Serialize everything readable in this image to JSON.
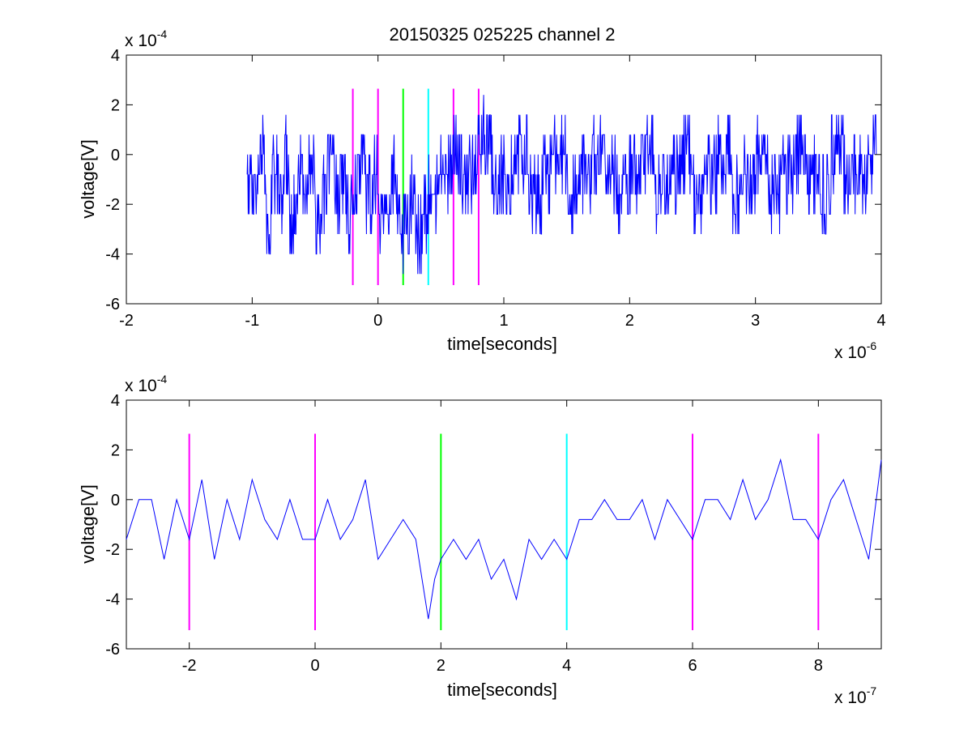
{
  "chart_data": [
    {
      "type": "line",
      "title": "20150325 025225 channel 2",
      "xlabel": "time[seconds]",
      "ylabel": "voltage[V]",
      "x_exponent_label": "x 10",
      "x_exponent": "-6",
      "y_exponent_label": "x 10",
      "y_exponent": "-4",
      "xlim": [
        -2,
        4
      ],
      "ylim": [
        -6,
        4
      ],
      "x_ticks": [
        "-2",
        "-1",
        "0",
        "1",
        "2",
        "3",
        "4"
      ],
      "y_ticks": [
        "4",
        "2",
        "0",
        "-2",
        "-4",
        "-6"
      ],
      "series": [
        {
          "color": "#0000ff",
          "x_range": [
            -1.04,
            3.96
          ],
          "levels": [
            -4.8,
            -4.0,
            -3.2,
            -2.4,
            -1.6,
            -0.8,
            0.0,
            0.8,
            1.6,
            2.4
          ],
          "x": [
            -1.04,
            -0.99,
            -0.95,
            -0.9,
            -0.85,
            -0.8,
            -0.75,
            -0.7,
            -0.65,
            -0.6,
            -0.55,
            -0.5,
            -0.45,
            -0.4,
            -0.35,
            -0.3,
            -0.25,
            -0.2,
            -0.15,
            -0.1,
            -0.05,
            0.0,
            0.05,
            0.1,
            0.15,
            0.18,
            0.2,
            0.25,
            0.3,
            0.35,
            0.4,
            0.45,
            0.5,
            0.55,
            0.6,
            0.65,
            0.7,
            0.75,
            0.8,
            0.9,
            1.0,
            1.1,
            1.2,
            1.3,
            1.4,
            1.5,
            1.6,
            1.7,
            1.8,
            1.9,
            2.0,
            2.1,
            2.2,
            2.3,
            2.4,
            2.5,
            2.6,
            2.7,
            2.8,
            2.9,
            3.0,
            3.1,
            3.2,
            3.3,
            3.4,
            3.5,
            3.6,
            3.7,
            3.8,
            3.9,
            3.96
          ],
          "y": [
            -0.8,
            -1.6,
            0.0,
            -2.4,
            -0.8,
            -1.6,
            0.0,
            -2.4,
            -0.8,
            -1.6,
            0.0,
            -2.4,
            -1.6,
            0.0,
            -1.6,
            -0.8,
            -2.4,
            -0.8,
            0.0,
            -1.6,
            -0.8,
            -2.4,
            -1.6,
            -0.8,
            -2.4,
            -4.0,
            -2.4,
            -1.6,
            -3.2,
            -2.4,
            -0.8,
            -1.6,
            -0.8,
            -0.8,
            0.0,
            -0.8,
            -0.8,
            0.0,
            0.8,
            -0.8,
            -0.8,
            0.0,
            -1.6,
            -0.8,
            0.0,
            -1.6,
            -0.8,
            0.0,
            -0.8,
            -1.6,
            -0.8,
            0.0,
            -1.6,
            -0.8,
            0.0,
            -1.6,
            -0.8,
            0.0,
            -1.6,
            -0.8,
            0.0,
            -1.6,
            -0.8,
            0.0,
            -0.8,
            -1.6,
            0.0,
            -0.8,
            -0.8,
            0.0,
            -1.6
          ]
        }
      ],
      "markers": [
        {
          "x": -0.2,
          "color": "#ff00ff"
        },
        {
          "x": 0.0,
          "color": "#ff00ff"
        },
        {
          "x": 0.2,
          "color": "#00ff00"
        },
        {
          "x": 0.4,
          "color": "#00ffff"
        },
        {
          "x": 0.6,
          "color": "#ff00ff"
        },
        {
          "x": 0.8,
          "color": "#ff00ff"
        }
      ],
      "marker_yrange": [
        -5.25,
        2.65
      ]
    },
    {
      "type": "line",
      "xlabel": "time[seconds]",
      "ylabel": "voltage[V]",
      "x_exponent_label": "x 10",
      "x_exponent": "-7",
      "y_exponent_label": "x 10",
      "y_exponent": "-4",
      "xlim": [
        -3,
        9
      ],
      "ylim": [
        -6,
        4
      ],
      "x_ticks": [
        "-2",
        "0",
        "2",
        "4",
        "6",
        "8"
      ],
      "y_ticks": [
        "4",
        "2",
        "0",
        "-2",
        "-4",
        "-6"
      ],
      "series": [
        {
          "color": "#0000ff",
          "x": [
            -3.0,
            -2.8,
            -2.6,
            -2.4,
            -2.2,
            -2.0,
            -1.8,
            -1.6,
            -1.4,
            -1.2,
            -1.0,
            -0.8,
            -0.6,
            -0.4,
            -0.2,
            0.0,
            0.2,
            0.4,
            0.6,
            0.8,
            1.0,
            1.2,
            1.4,
            1.6,
            1.8,
            1.9,
            2.0,
            2.2,
            2.4,
            2.6,
            2.8,
            3.0,
            3.2,
            3.4,
            3.6,
            3.8,
            4.0,
            4.2,
            4.4,
            4.6,
            4.8,
            5.0,
            5.2,
            5.4,
            5.6,
            5.8,
            6.0,
            6.2,
            6.4,
            6.6,
            6.8,
            7.0,
            7.2,
            7.4,
            7.6,
            7.8,
            8.0,
            8.2,
            8.4,
            8.6,
            8.8,
            9.0
          ],
          "y": [
            -1.6,
            0.0,
            0.0,
            -2.4,
            0.0,
            -1.6,
            0.8,
            -2.4,
            0.0,
            -1.6,
            0.8,
            -0.8,
            -1.6,
            0.0,
            -1.6,
            -1.6,
            0.0,
            -1.6,
            -0.8,
            0.8,
            -2.4,
            -1.6,
            -0.8,
            -1.6,
            -4.8,
            -3.2,
            -2.4,
            -1.6,
            -2.4,
            -1.6,
            -3.2,
            -2.4,
            -4.0,
            -1.6,
            -2.4,
            -1.6,
            -2.4,
            -0.8,
            -0.8,
            0.0,
            -0.8,
            -0.8,
            0.0,
            -1.6,
            0.0,
            -0.8,
            -1.6,
            0.0,
            0.0,
            -0.8,
            0.8,
            -0.8,
            0.0,
            1.6,
            -0.8,
            -0.8,
            -1.6,
            0.0,
            0.8,
            -0.8,
            -2.4,
            1.6
          ]
        }
      ],
      "markers": [
        {
          "x": -2,
          "color": "#ff00ff"
        },
        {
          "x": 0,
          "color": "#ff00ff"
        },
        {
          "x": 2,
          "color": "#00ff00"
        },
        {
          "x": 4,
          "color": "#00ffff"
        },
        {
          "x": 6,
          "color": "#ff00ff"
        },
        {
          "x": 8,
          "color": "#ff00ff"
        }
      ],
      "marker_yrange": [
        -5.25,
        2.65
      ]
    }
  ]
}
